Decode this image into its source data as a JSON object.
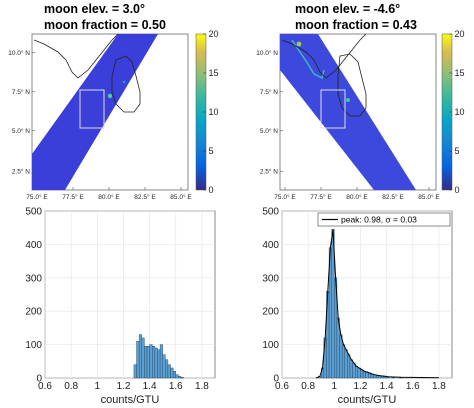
{
  "chart_data": [
    {
      "type": "heatmap",
      "title_line1": "moon elev. = 3.0°",
      "title_line2": "moon fraction = 0.50",
      "xticks": [
        "75.0° E",
        "77.5° E",
        "80.0° E",
        "82.5° E",
        "85.0° E"
      ],
      "yticks": [
        "10.0° N",
        "7.5° N",
        "5.0° N",
        "2.5° N"
      ],
      "xlim": [
        75.0,
        85.0
      ],
      "ylim": [
        1.0,
        11.0
      ],
      "colorbar_ticks": [
        "20",
        "15",
        "10",
        "5",
        "0"
      ],
      "clim": [
        0,
        20
      ],
      "swath_color": "#3b3fd9"
    },
    {
      "type": "heatmap",
      "title_line1": "moon elev. = -4.6°",
      "title_line2": "moon fraction = 0.43",
      "xticks": [
        "75.0° E",
        "77.5° E",
        "80.0° E",
        "82.5° E",
        "85.0° E"
      ],
      "yticks": [
        "10.0° N",
        "7.5° N",
        "5.0° N",
        "2.5° N"
      ],
      "xlim": [
        75.0,
        85.0
      ],
      "ylim": [
        1.0,
        11.0
      ],
      "colorbar_ticks": [
        "20",
        "15",
        "10",
        "5",
        "0"
      ],
      "clim": [
        0,
        20
      ],
      "swath_color": "#3d48dc"
    },
    {
      "type": "bar",
      "xlabel": "counts/GTU",
      "xticks": [
        "0.6",
        "0.8",
        "1",
        "1.2",
        "1.4",
        "1.6",
        "1.8"
      ],
      "yticks": [
        "0",
        "100",
        "200",
        "300",
        "400",
        "500"
      ],
      "xlim": [
        0.6,
        1.9
      ],
      "ylim": [
        0,
        500
      ],
      "bin_width": 0.02,
      "bins": [
        {
          "x": 1.29,
          "y": 40
        },
        {
          "x": 1.31,
          "y": 110
        },
        {
          "x": 1.33,
          "y": 130
        },
        {
          "x": 1.35,
          "y": 120
        },
        {
          "x": 1.37,
          "y": 95
        },
        {
          "x": 1.39,
          "y": 95
        },
        {
          "x": 1.41,
          "y": 100
        },
        {
          "x": 1.43,
          "y": 95
        },
        {
          "x": 1.45,
          "y": 90
        },
        {
          "x": 1.47,
          "y": 85
        },
        {
          "x": 1.49,
          "y": 100
        },
        {
          "x": 1.51,
          "y": 70
        },
        {
          "x": 1.53,
          "y": 55
        },
        {
          "x": 1.55,
          "y": 40
        },
        {
          "x": 1.57,
          "y": 30
        },
        {
          "x": 1.59,
          "y": 20
        },
        {
          "x": 1.61,
          "y": 10
        },
        {
          "x": 1.63,
          "y": 5
        },
        {
          "x": 1.65,
          "y": 2
        }
      ],
      "bar_color": "#5ba0d0"
    },
    {
      "type": "bar",
      "xlabel": "counts/GTU",
      "xticks": [
        "0.6",
        "0.8",
        "1",
        "1.2",
        "1.4",
        "1.6",
        "1.8"
      ],
      "yticks": [
        "0",
        "100",
        "200",
        "300",
        "400",
        "500"
      ],
      "xlim": [
        0.6,
        1.9
      ],
      "ylim": [
        0,
        500
      ],
      "bin_width": 0.02,
      "bins": [
        {
          "x": 0.89,
          "y": 5
        },
        {
          "x": 0.91,
          "y": 30
        },
        {
          "x": 0.93,
          "y": 120
        },
        {
          "x": 0.95,
          "y": 260
        },
        {
          "x": 0.97,
          "y": 390
        },
        {
          "x": 0.99,
          "y": 445
        },
        {
          "x": 1.01,
          "y": 300
        },
        {
          "x": 1.03,
          "y": 180
        },
        {
          "x": 1.05,
          "y": 130
        },
        {
          "x": 1.07,
          "y": 100
        },
        {
          "x": 1.09,
          "y": 85
        },
        {
          "x": 1.11,
          "y": 70
        },
        {
          "x": 1.13,
          "y": 55
        },
        {
          "x": 1.15,
          "y": 45
        },
        {
          "x": 1.17,
          "y": 35
        },
        {
          "x": 1.19,
          "y": 30
        },
        {
          "x": 1.21,
          "y": 25
        },
        {
          "x": 1.23,
          "y": 20
        },
        {
          "x": 1.25,
          "y": 18
        },
        {
          "x": 1.27,
          "y": 15
        },
        {
          "x": 1.29,
          "y": 12
        },
        {
          "x": 1.31,
          "y": 10
        },
        {
          "x": 1.33,
          "y": 8
        },
        {
          "x": 1.35,
          "y": 7
        },
        {
          "x": 1.37,
          "y": 6
        },
        {
          "x": 1.39,
          "y": 5
        },
        {
          "x": 1.41,
          "y": 4
        },
        {
          "x": 1.45,
          "y": 3
        },
        {
          "x": 1.51,
          "y": 2
        }
      ],
      "bar_color": "#5ba0d0",
      "legend": "peak: 0.98, σ = 0.03",
      "legend_position": "top-right",
      "fit": {
        "peak": 0.98,
        "sigma": 0.03
      }
    }
  ]
}
